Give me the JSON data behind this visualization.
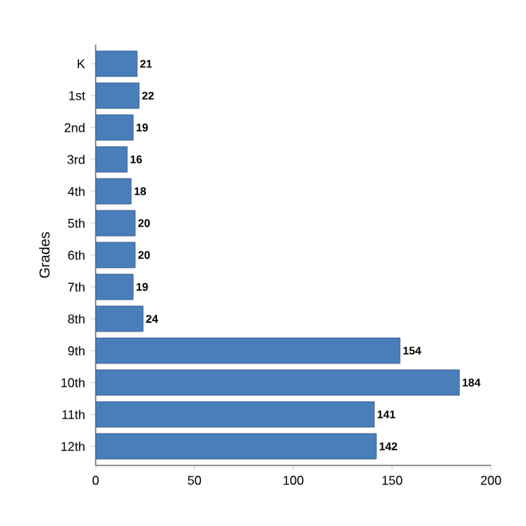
{
  "chart_data": {
    "type": "bar",
    "orientation": "horizontal",
    "ylabel": "Grades",
    "categories": [
      "K",
      "1st",
      "2nd",
      "3rd",
      "4th",
      "5th",
      "6th",
      "7th",
      "8th",
      "9th",
      "10th",
      "11th",
      "12th"
    ],
    "values": [
      21,
      22,
      19,
      16,
      18,
      20,
      20,
      19,
      24,
      154,
      184,
      141,
      142
    ],
    "color": "#4a7ebb",
    "xlim": [
      0,
      200
    ],
    "xticks": [
      0,
      50,
      100,
      150,
      200
    ],
    "data_labels": true,
    "grid": false
  }
}
